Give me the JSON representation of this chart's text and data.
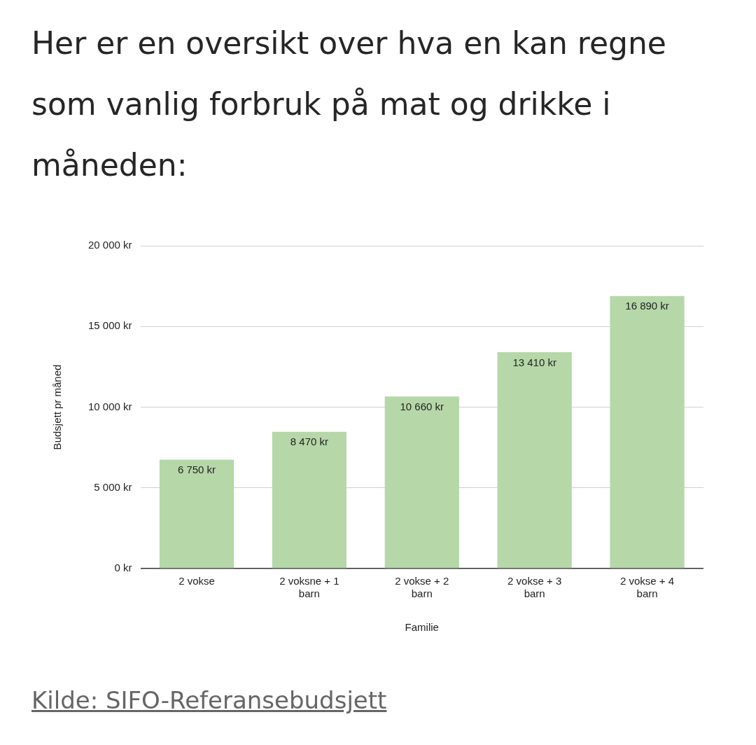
{
  "chart_data": {
    "type": "bar",
    "title": "Her er en oversikt over hva en kan regne som vanlig forbruk på mat og drikke i måneden:",
    "categories": [
      "2 vokse",
      "2 voksne + 1 barn",
      "2 vokse + 2 barn",
      "2 vokse + 3 barn",
      "2 vokse + 4 barn"
    ],
    "values": [
      6750,
      8470,
      10660,
      13410,
      16890
    ],
    "value_labels": [
      "6 750 kr",
      "8 470 kr",
      "10 660 kr",
      "13 410 kr",
      "16 890 kr"
    ],
    "color": "#b6d7a8",
    "xlabel": "Familie",
    "ylabel": "Budsjett pr måned",
    "ylim": [
      0,
      20000
    ],
    "yticks": [
      {
        "value": 0,
        "label": "0 kr"
      },
      {
        "value": 5000,
        "label": "5 000 kr"
      },
      {
        "value": 10000,
        "label": "10 000 kr"
      },
      {
        "value": 15000,
        "label": "15 000 kr"
      },
      {
        "value": 20000,
        "label": "20 000 kr"
      }
    ],
    "grid": "y",
    "legend": false,
    "annotations": [
      "Kilde: SIFO-Referansebudsjett"
    ]
  }
}
